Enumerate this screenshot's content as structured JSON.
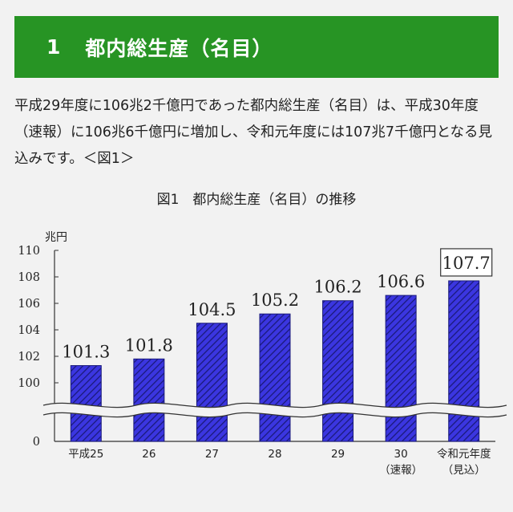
{
  "header": {
    "number": "1",
    "title": "都内総生産（名目）"
  },
  "body_text": "平成29年度に106兆2千億円であった都内総生産（名目）は、平成30年度（速報）に106兆6千億円に増加し、令和元年度には107兆7千億円となる見込みです。＜図1＞",
  "chart_data": {
    "type": "bar",
    "title": "図1　都内総生産（名目）の推移",
    "ylabel": "兆円",
    "y_ticks": [
      "110",
      "108",
      "106",
      "104",
      "102",
      "100",
      "0"
    ],
    "ylim": [
      100,
      110
    ],
    "axis_break": true,
    "categories": [
      {
        "line1": "平成25",
        "line2": ""
      },
      {
        "line1": "26",
        "line2": ""
      },
      {
        "line1": "27",
        "line2": ""
      },
      {
        "line1": "28",
        "line2": ""
      },
      {
        "line1": "29",
        "line2": ""
      },
      {
        "line1": "30",
        "line2": "（速報）"
      },
      {
        "line1": "令和元年度",
        "line2": "（見込）"
      }
    ],
    "values": [
      101.3,
      101.8,
      104.5,
      105.2,
      106.2,
      106.6,
      107.7
    ],
    "value_labels": [
      "101.3",
      "101.8",
      "104.5",
      "105.2",
      "106.2",
      "106.6",
      "107.7"
    ],
    "highlighted_index": 6,
    "bar_color": "#3b36e0",
    "hatch_color": "#1a1a7a"
  }
}
